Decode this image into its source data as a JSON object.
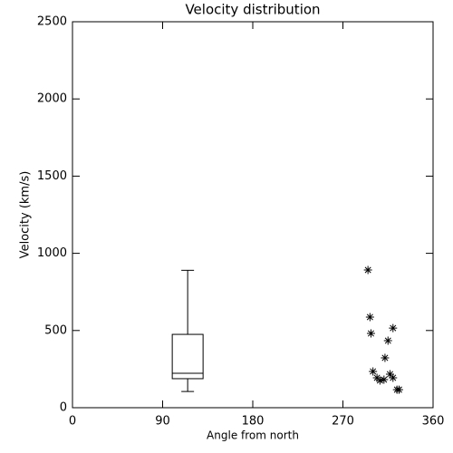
{
  "chart_data": {
    "type": "scatter",
    "title": "Velocity distribution",
    "x_label": "Angle from north",
    "y_label": "Velocity (km/s)",
    "xlim": [
      0,
      360
    ],
    "xticks": [
      0,
      90,
      180,
      270,
      360
    ],
    "ylim": [
      0,
      2500
    ],
    "yticks": [
      0,
      500,
      1000,
      1500,
      2000,
      2500
    ],
    "color": "#000000",
    "marker": "asterisk",
    "x": [
      295,
      297,
      298,
      300,
      304,
      307,
      311,
      312,
      315,
      317,
      320,
      320,
      324,
      326
    ],
    "y": [
      892,
      587,
      481,
      235,
      194,
      176,
      182,
      323,
      434,
      217,
      516,
      194,
      117,
      117
    ],
    "box": {
      "x": 115,
      "min": 105,
      "q1": 188,
      "median": 223,
      "q3": 475,
      "max": 890
    }
  }
}
